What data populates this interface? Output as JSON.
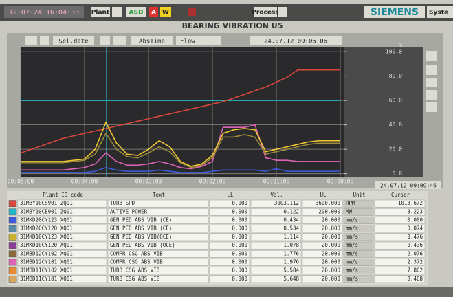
{
  "header": {
    "datetime": "12-07-24 16:04:33",
    "plant": "Plant",
    "asd": "ASD",
    "alarm": "A",
    "warning": "W",
    "process": "Process",
    "brand": "SIEMENS",
    "system": "Syste",
    "title": "BEARING VIBRATION U5"
  },
  "toolbar": {
    "select_date": "Sel.date",
    "abs_time": "AbsTime",
    "flow": "Flow",
    "date": "24.07.12 09:06:06"
  },
  "chart_data": {
    "type": "line",
    "y_unit": "%",
    "cursor_time": "24.07.12 09:09:46",
    "x": [
      300,
      290,
      280,
      270,
      260,
      250,
      240,
      230,
      220,
      210,
      200,
      190,
      180,
      170,
      160,
      150,
      140,
      130,
      120,
      110,
      100,
      90,
      80,
      70,
      60,
      50,
      40,
      30,
      20,
      10,
      0
    ],
    "xlim": [
      300,
      0
    ],
    "xticks": [
      {
        "value": 300,
        "label": "00:05:00"
      },
      {
        "value": 240,
        "label": "00:04:00"
      },
      {
        "value": 180,
        "label": "00:03:00"
      },
      {
        "value": 120,
        "label": "00:02:00"
      },
      {
        "value": 60,
        "label": "00:01:00"
      },
      {
        "value": 0,
        "label": "00:00:00"
      }
    ],
    "ylim": [
      -3,
      104
    ],
    "yticks": [
      {
        "value": 0,
        "label": "0.0"
      },
      {
        "value": 20,
        "label": "20.0"
      },
      {
        "value": 40,
        "label": "40.0"
      },
      {
        "value": 60,
        "label": "60.0"
      },
      {
        "value": 80,
        "label": "80.0"
      },
      {
        "value": 100,
        "label": "100.0"
      }
    ],
    "grid": true,
    "series": [
      {
        "color": "#23b8c8",
        "values": [
          60,
          60,
          60,
          60,
          60,
          60,
          60,
          60,
          60,
          60,
          60,
          60,
          60,
          60,
          60,
          60,
          60,
          60,
          60,
          60,
          60,
          60,
          60,
          60,
          60,
          60,
          60,
          60,
          60,
          60,
          60
        ]
      },
      {
        "color": "#d9463c",
        "values": [
          17,
          20,
          23,
          26,
          29,
          31,
          33,
          35,
          37,
          39,
          41,
          43,
          45,
          47,
          49,
          51,
          53,
          55,
          57,
          59,
          62,
          65,
          68,
          71,
          75,
          79,
          85,
          85,
          85,
          85,
          85
        ]
      },
      {
        "color": "#3c5adc",
        "values": [
          1,
          1,
          1,
          1,
          1,
          1,
          1,
          2,
          5,
          3,
          2,
          2,
          2,
          3,
          2,
          1,
          1,
          1,
          2,
          3,
          3,
          3,
          3,
          2,
          4,
          2,
          2,
          2,
          2,
          2,
          2
        ]
      },
      {
        "color": "#e063b8",
        "values": [
          3,
          3,
          3,
          3,
          3,
          4,
          5,
          8,
          17,
          10,
          7,
          7,
          8,
          10,
          8,
          5,
          4,
          6,
          10,
          38,
          38,
          38,
          40,
          13,
          11,
          11,
          10,
          10,
          10,
          10,
          10
        ]
      },
      {
        "color": "#9a8a3a",
        "values": [
          9,
          9,
          9,
          9,
          9,
          10,
          11,
          16,
          33,
          20,
          14,
          13,
          17,
          22,
          18,
          9,
          5,
          7,
          13,
          30,
          30,
          32,
          30,
          16,
          18,
          20,
          22,
          24,
          25,
          25,
          25
        ]
      },
      {
        "color": "#f2c832",
        "values": [
          10,
          10,
          10,
          10,
          10,
          11,
          12,
          20,
          42,
          25,
          16,
          15,
          20,
          27,
          22,
          10,
          6,
          8,
          15,
          33,
          36,
          37,
          36,
          18,
          20,
          22,
          24,
          26,
          27,
          27,
          27
        ]
      }
    ]
  },
  "table": {
    "columns": [
      "Plant ID code",
      "Text",
      "LL",
      "Val.",
      "UL",
      "Unit",
      "Cursor"
    ],
    "rows": [
      {
        "color": "#d9463c",
        "cells": [
          "31MBY10CS901 ZQ01",
          "TURB SPD",
          "0.000",
          "3003.112",
          "3600.000",
          "RPM",
          "1013.672"
        ]
      },
      {
        "color": "#23b8c8",
        "cells": [
          "31MBY10CE901 ZQ01",
          "ACTIVE POWER",
          "0.000",
          "0.122",
          "200.000",
          "MW",
          "-3.223"
        ]
      },
      {
        "color": "#3c5adc",
        "cells": [
          "31MKD20CY123 XQ01",
          "GEN PED ABS VIB (CE)",
          "0.000",
          "0.434",
          "20.000",
          "mm/s",
          "0.000"
        ]
      },
      {
        "color": "#5a8aa8",
        "cells": [
          "31MKD20CY120 XQ01",
          "GEN PED ABS VIB (CE)",
          "0.000",
          "0.534",
          "20.000",
          "mm/s",
          "0.074"
        ]
      },
      {
        "color": "#c8b030",
        "cells": [
          "31MKD10CY123 XQ01",
          "GEN PED ABS VIB(OCE)",
          "0.000",
          "1.114",
          "20.000",
          "mm/s",
          "0.476"
        ]
      },
      {
        "color": "#8a3c9a",
        "cells": [
          "31MKD10CY120 XQ01",
          "GEN PED ABS VIB (OCE)",
          "0.000",
          "1.078",
          "20.000",
          "mm/s",
          "0.436"
        ]
      },
      {
        "color": "#8a6a3a",
        "cells": [
          "31MBD12CY102 XQ01",
          "COMPR CSG ABS VIB",
          "0.000",
          "1.776",
          "20.000",
          "mm/s",
          "2.076"
        ]
      },
      {
        "color": "#e063b8",
        "cells": [
          "31MBD12CY101 XQ01",
          "COMPR CSG ABS VIB",
          "0.000",
          "1.976",
          "20.000",
          "mm/s",
          "2.372"
        ]
      },
      {
        "color": "#e88a30",
        "cells": [
          "31MBD11CY102 XQ01",
          "TURB CSG ABS VIB",
          "0.000",
          "5.584",
          "20.000",
          "mm/s",
          "7.802"
        ]
      },
      {
        "color": "#d8a860",
        "cells": [
          "31MBD11CY101 XQ01",
          "TURB CSG ABS VIB",
          "0.000",
          "5.648",
          "20.000",
          "mm/s",
          "8.468"
        ]
      }
    ]
  }
}
